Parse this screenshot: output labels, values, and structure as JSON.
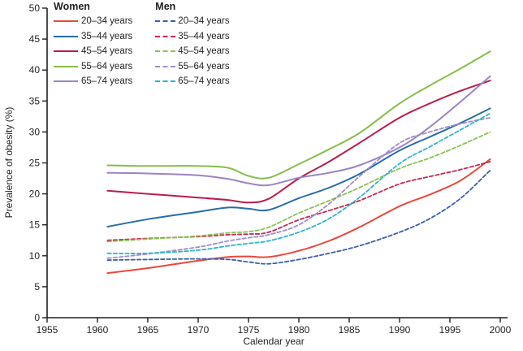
{
  "figure": {
    "background": "#ffffff",
    "text_color": "#231f20",
    "axis_color": "#231f20"
  },
  "legend": {
    "groups": [
      {
        "header": "Women"
      },
      {
        "header": "Men"
      }
    ]
  },
  "chart_data": {
    "type": "line",
    "title": "",
    "xlabel": "Calendar year",
    "ylabel": "Prevalence of obesity (%)",
    "xlim": [
      1955,
      2000
    ],
    "ylim": [
      0,
      50
    ],
    "xticks": [
      1955,
      1960,
      1965,
      1970,
      1975,
      1980,
      1985,
      1990,
      1995,
      2000
    ],
    "yticks": [
      0,
      5,
      10,
      15,
      20,
      25,
      30,
      35,
      40,
      45,
      50
    ],
    "grid": false,
    "legend_position": "top-left",
    "x": [
      1961,
      1965,
      1970,
      1973,
      1975,
      1977,
      1980,
      1983,
      1986,
      1990,
      1993,
      1996,
      1999
    ],
    "series": [
      {
        "id": "women-20-34",
        "group": "Women",
        "label": "20–34 years",
        "color": "#e8483b",
        "style": "solid",
        "values": [
          7.2,
          8.0,
          9.2,
          9.8,
          9.9,
          9.8,
          10.8,
          12.4,
          14.6,
          18.0,
          19.9,
          22.1,
          25.6
        ]
      },
      {
        "id": "women-35-44",
        "group": "Women",
        "label": "35–44 years",
        "color": "#2a6bad",
        "style": "solid",
        "values": [
          14.7,
          15.9,
          17.1,
          17.8,
          17.6,
          17.4,
          19.3,
          21.0,
          23.2,
          27.0,
          29.2,
          31.4,
          33.8
        ]
      },
      {
        "id": "women-45-54",
        "group": "Women",
        "label": "45–54 years",
        "color": "#bb1d4e",
        "style": "solid",
        "values": [
          20.5,
          20.0,
          19.4,
          19.0,
          18.6,
          19.2,
          22.5,
          25.2,
          28.2,
          32.3,
          34.6,
          36.6,
          38.3
        ]
      },
      {
        "id": "women-55-64",
        "group": "Women",
        "label": "55–64 years",
        "color": "#86bd4b",
        "style": "solid",
        "values": [
          24.6,
          24.5,
          24.5,
          24.2,
          22.9,
          22.6,
          24.8,
          27.2,
          29.8,
          34.6,
          37.5,
          40.2,
          43.0
        ]
      },
      {
        "id": "women-65-74",
        "group": "Women",
        "label": "65–74 years",
        "color": "#9b85c4",
        "style": "solid",
        "values": [
          23.4,
          23.3,
          23.0,
          22.4,
          21.7,
          21.4,
          22.6,
          23.4,
          24.6,
          27.5,
          30.8,
          34.8,
          39.0
        ]
      },
      {
        "id": "men-20-34",
        "group": "Men",
        "label": "20–34 years",
        "color": "#3d5fa8",
        "style": "dashed",
        "values": [
          9.3,
          9.4,
          9.5,
          9.4,
          9.0,
          8.7,
          9.4,
          10.4,
          11.6,
          13.8,
          16.0,
          19.2,
          23.8
        ]
      },
      {
        "id": "men-35-44",
        "group": "Men",
        "label": "35–44 years",
        "color": "#c42a52",
        "style": "dashed",
        "values": [
          12.5,
          12.8,
          13.1,
          13.4,
          13.5,
          13.8,
          15.8,
          17.3,
          18.9,
          21.6,
          22.8,
          23.9,
          25.2
        ]
      },
      {
        "id": "men-45-54",
        "group": "Men",
        "label": "45–54 years",
        "color": "#8cc155",
        "style": "dashed",
        "values": [
          12.3,
          12.7,
          13.2,
          13.7,
          13.9,
          14.6,
          16.9,
          18.9,
          21.0,
          24.1,
          25.8,
          27.8,
          30.0
        ]
      },
      {
        "id": "men-55-64",
        "group": "Men",
        "label": "55–64 years",
        "color": "#a18cc9",
        "style": "dashed",
        "values": [
          9.6,
          10.3,
          11.4,
          12.4,
          12.9,
          13.4,
          15.0,
          18.4,
          22.8,
          28.2,
          30.0,
          31.3,
          32.3
        ]
      },
      {
        "id": "men-65-74",
        "group": "Men",
        "label": "65–74 years",
        "color": "#2fb4c9",
        "style": "dashed",
        "values": [
          10.4,
          10.4,
          10.9,
          11.6,
          12.0,
          12.4,
          13.8,
          16.0,
          19.4,
          24.9,
          27.6,
          30.3,
          33.0
        ]
      }
    ]
  }
}
